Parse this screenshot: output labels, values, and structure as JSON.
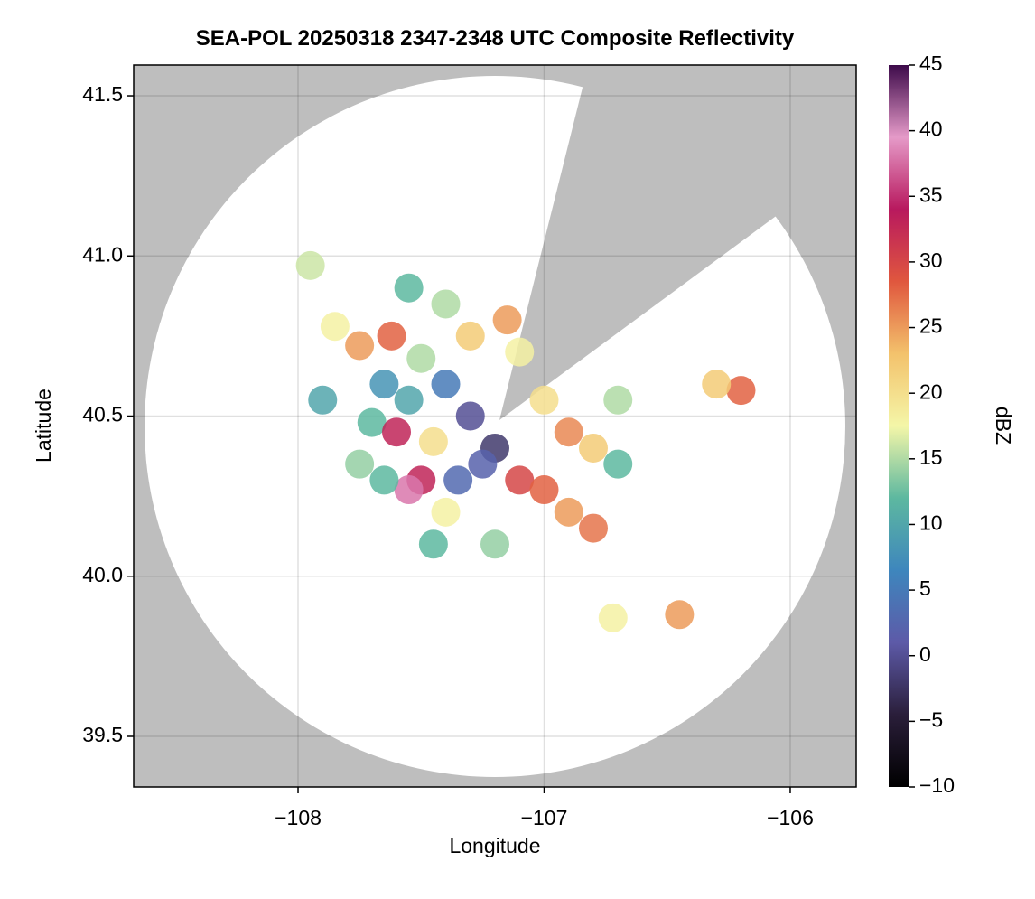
{
  "chart_data": {
    "type": "scatter",
    "title": "SEA-POL 20250318 2347-2348 UTC Composite Reflectivity",
    "x_label": "Longitude",
    "y_label": "Latitude",
    "xlim": [
      -108.668,
      -105.732
    ],
    "ylim": [
      39.342,
      41.596
    ],
    "xticks": [
      {
        "value": -108,
        "label": "−108"
      },
      {
        "value": -107,
        "label": "−107"
      },
      {
        "value": -106,
        "label": "−106"
      }
    ],
    "yticks": [
      39.5,
      {
        "value": 40,
        "label": "40.0"
      },
      40.5,
      {
        "value": 41,
        "label": "41.0"
      },
      41.5
    ],
    "grid": true,
    "colorbar_label": "dBZ",
    "clim": [
      -10,
      45
    ],
    "cticks": [
      {
        "value": -10,
        "label": "−10"
      },
      {
        "value": -5,
        "label": "−5"
      },
      0,
      5,
      10,
      15,
      20,
      25,
      30,
      35,
      40,
      45
    ],
    "colormap": [
      "#000000",
      "#2a1e3a",
      "#5d5aa8",
      "#3e86bd",
      "#5db8a0",
      "#f4f6a8",
      "#f3c26c",
      "#e0573e",
      "#b8195e",
      "#e59ac8",
      "#3d0a4a"
    ],
    "x": [
      -107.62,
      -107.75,
      -107.85,
      -107.5,
      -107.4,
      -107.55,
      -107.65,
      -107.7,
      -107.6,
      -107.45,
      -107.3,
      -107.2,
      -107.25,
      -107.35,
      -107.5,
      -107.55,
      -107.65,
      -107.4,
      -107.1,
      -107.0,
      -106.9,
      -106.8,
      -106.8,
      -106.9,
      -107.0,
      -106.7,
      -106.7,
      -107.3,
      -107.15,
      -107.1,
      -107.4,
      -107.75,
      -106.2,
      -106.3,
      -106.45,
      -106.72,
      -107.2,
      -107.45,
      -107.9,
      -107.55,
      -107.95
    ],
    "y": [
      40.75,
      40.72,
      40.78,
      40.68,
      40.6,
      40.55,
      40.6,
      40.48,
      40.45,
      40.42,
      40.5,
      40.4,
      40.35,
      40.3,
      40.3,
      40.27,
      40.3,
      40.2,
      40.3,
      40.27,
      40.2,
      40.15,
      40.4,
      40.45,
      40.55,
      40.55,
      40.35,
      40.75,
      40.8,
      40.7,
      40.85,
      40.35,
      40.58,
      40.6,
      39.88,
      39.87,
      40.1,
      40.1,
      40.55,
      40.9,
      40.97
    ],
    "values": [
      28,
      25,
      18,
      15,
      5,
      10,
      8,
      12,
      33,
      20,
      0,
      -2,
      2,
      3,
      33,
      38,
      12,
      18,
      30,
      28,
      25,
      27,
      22,
      26,
      20,
      15,
      12,
      22,
      25,
      18,
      15,
      14,
      28,
      22,
      25,
      18,
      14,
      12,
      10,
      12,
      16
    ]
  }
}
